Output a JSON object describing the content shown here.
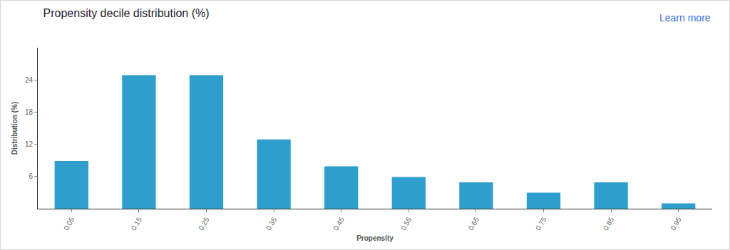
{
  "chart_data": {
    "type": "bar",
    "title": "Propensity decile distribution (%)",
    "x_label": "Propensity",
    "y_label": "Distribution (%)",
    "categories": [
      "0.05",
      "0.15",
      "0.25",
      "0.35",
      "0.45",
      "0.55",
      "0.65",
      "0.75",
      "0.85",
      "0.95"
    ],
    "values": [
      8.9,
      24.9,
      24.9,
      12.9,
      7.9,
      5.9,
      4.9,
      3.0,
      4.9,
      1.0
    ],
    "color": "#2e9fcc",
    "ylim": [
      0,
      30
    ],
    "yticks": [
      6,
      12,
      18,
      24
    ],
    "grid": false,
    "annotations": [
      "Learn more"
    ]
  }
}
